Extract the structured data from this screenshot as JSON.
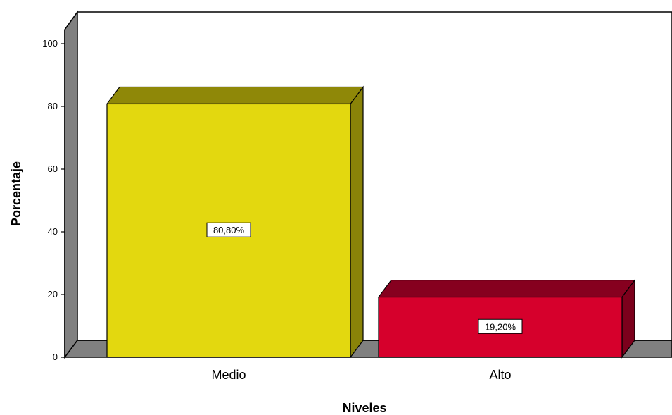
{
  "chart_data": {
    "type": "bar",
    "categories": [
      "Medio",
      "Alto"
    ],
    "values": [
      80.8,
      19.2
    ],
    "data_labels": [
      "80,80%",
      "19,20%"
    ],
    "xlabel": "Niveles",
    "ylabel": "Porcentaje",
    "ylim": [
      0,
      100
    ],
    "yticks": [
      "0",
      "20",
      "40",
      "60",
      "80",
      "100"
    ],
    "grid": false,
    "style": "3d",
    "colors": {
      "bars": [
        "#e3d80f",
        "#d6002c"
      ],
      "bar_tops": [
        "#8f8808",
        "#86001f"
      ],
      "bar_sides": [
        "#8a8308",
        "#7c001c"
      ],
      "walls": "#808080",
      "plot_background": "#ffffff"
    }
  }
}
